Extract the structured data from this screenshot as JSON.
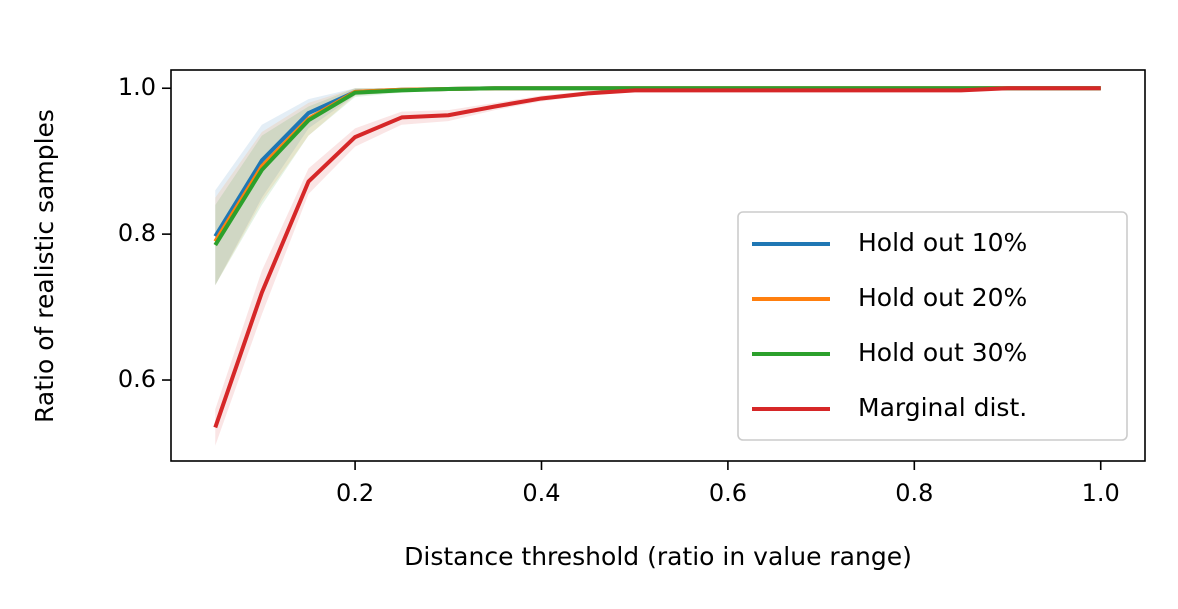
{
  "chart_data": {
    "type": "line",
    "x_label": "Distance threshold (ratio in value range)",
    "y_label": "Ratio of realistic samples",
    "x": [
      0.05,
      0.1,
      0.15,
      0.2,
      0.25,
      0.3,
      0.35,
      0.4,
      0.45,
      0.5,
      0.55,
      0.6,
      0.65,
      0.7,
      0.75,
      0.8,
      0.85,
      0.9,
      0.95,
      1.0
    ],
    "xlim": [
      0.0025,
      1.0475
    ],
    "xticks": [
      0.2,
      0.4,
      0.6,
      0.8,
      {
        "value": 1,
        "label": "1.0"
      }
    ],
    "ylim": [
      0.489,
      1.025
    ],
    "yticks": [
      0.6,
      0.8,
      {
        "value": 1,
        "label": "1.0"
      }
    ],
    "legend": "lower right",
    "series": [
      {
        "name": "Hold out 10%",
        "color": "#1f77b4",
        "values": [
          0.797,
          0.901,
          0.966,
          0.995,
          0.998,
          0.999,
          1,
          1,
          1,
          1,
          1,
          1,
          1,
          1,
          1,
          1,
          1,
          1,
          1,
          1
        ],
        "lower": [
          0.73,
          0.85,
          0.945,
          0.99,
          0.995,
          0.998,
          1,
          1,
          1,
          1,
          1,
          1,
          1,
          1,
          1,
          1,
          1,
          1,
          1,
          1
        ],
        "upper": [
          0.86,
          0.95,
          0.985,
          1,
          1,
          1,
          1,
          1,
          1,
          1,
          1,
          1,
          1,
          1,
          1,
          1,
          1,
          1,
          1,
          1
        ]
      },
      {
        "name": "Hold out 20%",
        "color": "#ff7f0e",
        "values": [
          0.79,
          0.893,
          0.958,
          0.995,
          0.998,
          0.999,
          1,
          1,
          1,
          1,
          1,
          1,
          1,
          1,
          1,
          1,
          1,
          1,
          1,
          1
        ],
        "lower": [
          0.73,
          0.845,
          0.935,
          0.99,
          0.995,
          0.998,
          1,
          1,
          1,
          1,
          1,
          1,
          1,
          1,
          1,
          1,
          1,
          1,
          1,
          1
        ],
        "upper": [
          0.85,
          0.94,
          0.98,
          1,
          1,
          1,
          1,
          1,
          1,
          1,
          1,
          1,
          1,
          1,
          1,
          1,
          1,
          1,
          1,
          1
        ]
      },
      {
        "name": "Hold out 30%",
        "color": "#2ca02c",
        "values": [
          0.785,
          0.888,
          0.956,
          0.994,
          0.997,
          0.999,
          1,
          1,
          1,
          1,
          1,
          1,
          1,
          1,
          1,
          1,
          1,
          1,
          1,
          1
        ],
        "lower": [
          0.73,
          0.84,
          0.935,
          0.988,
          0.994,
          0.998,
          1,
          1,
          1,
          1,
          1,
          1,
          1,
          1,
          1,
          1,
          1,
          1,
          1,
          1
        ],
        "upper": [
          0.84,
          0.935,
          0.975,
          1,
          1,
          1,
          1,
          1,
          1,
          1,
          1,
          1,
          1,
          1,
          1,
          1,
          1,
          1,
          1,
          1
        ]
      },
      {
        "name": "Marginal dist.",
        "color": "#d62728",
        "values": [
          0.535,
          0.72,
          0.872,
          0.933,
          0.96,
          0.963,
          0.975,
          0.986,
          0.993,
          0.997,
          0.997,
          0.997,
          0.997,
          0.997,
          0.997,
          0.997,
          0.997,
          1,
          1,
          1
        ],
        "lower": [
          0.51,
          0.69,
          0.855,
          0.92,
          0.95,
          0.955,
          0.97,
          0.982,
          0.99,
          0.995,
          0.996,
          0.996,
          0.996,
          0.996,
          0.996,
          0.996,
          0.996,
          0.999,
          1,
          1
        ],
        "upper": [
          0.56,
          0.75,
          0.89,
          0.945,
          0.968,
          0.97,
          0.98,
          0.99,
          0.996,
          0.999,
          0.998,
          0.998,
          0.998,
          0.998,
          0.998,
          0.998,
          0.998,
          1,
          1,
          1
        ]
      }
    ]
  }
}
